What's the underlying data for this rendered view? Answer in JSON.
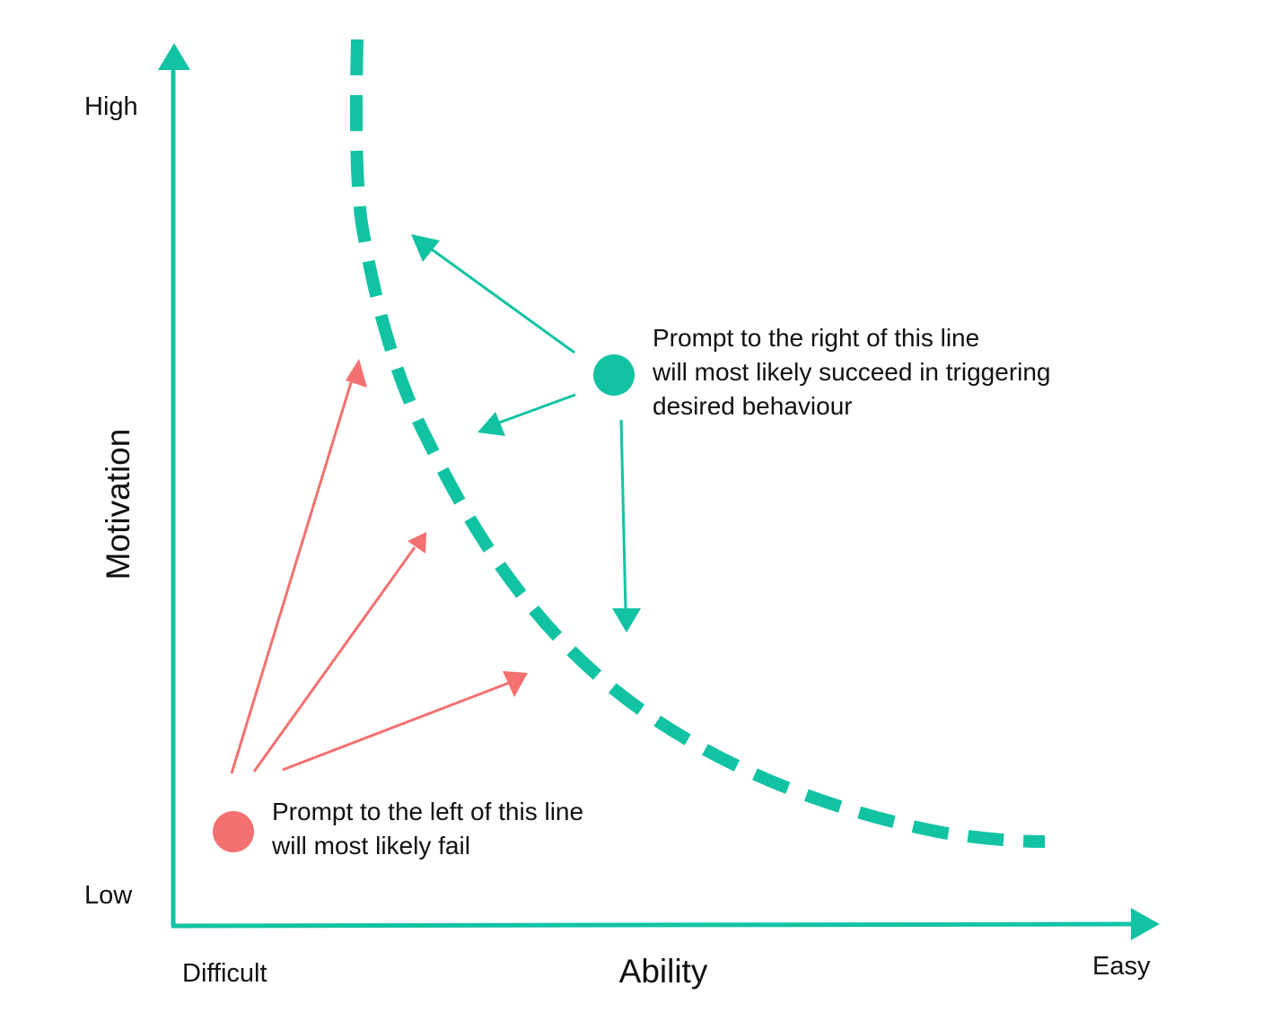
{
  "axes": {
    "y_title": "Motivation",
    "y_high": "High",
    "y_low": "Low",
    "x_title": "Ability",
    "x_left": "Difficult",
    "x_right": "Easy"
  },
  "success_note": {
    "lines": [
      "Prompt to the right of this line",
      "will most likely succeed in triggering",
      "desired behaviour"
    ]
  },
  "fail_note": {
    "lines": [
      "Prompt to the left of this line",
      "will most likely fail"
    ]
  },
  "colors": {
    "teal": "#12c3a3",
    "coral": "#f37170",
    "text": "#111111"
  }
}
